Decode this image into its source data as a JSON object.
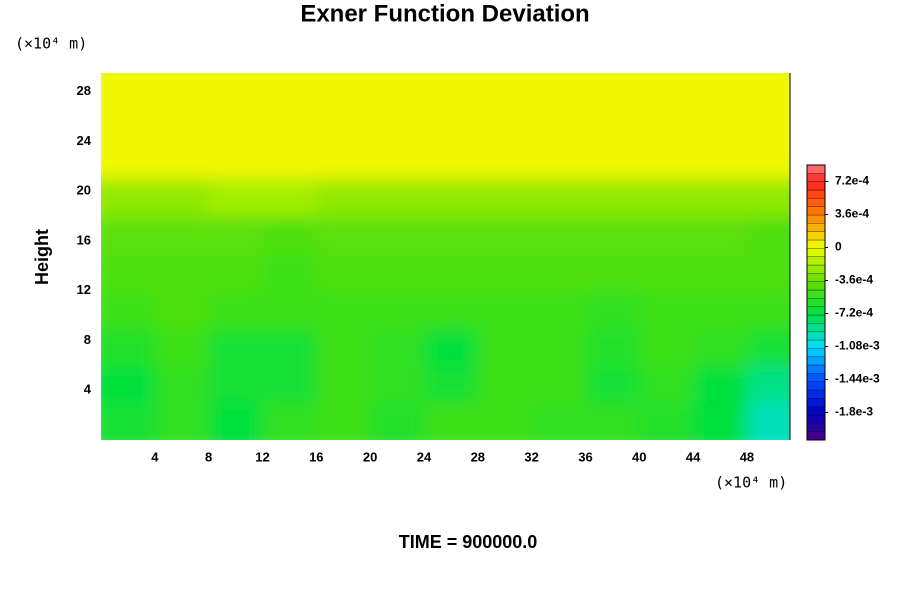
{
  "chart_data": {
    "type": "heatmap",
    "title": "Exner Function Deviation",
    "ylabel": "Height",
    "xunit": "(×10⁴ m)",
    "yunit": "(×10⁴ m)",
    "footer": "TIME = 900000.0",
    "xlim": [
      0,
      51.2
    ],
    "ylim": [
      0,
      29.5
    ],
    "xticks": [
      4,
      8,
      12,
      16,
      20,
      24,
      28,
      32,
      36,
      40,
      44,
      48
    ],
    "yticks": [
      4,
      8,
      12,
      16,
      20,
      24,
      28
    ],
    "x": [
      2,
      6,
      10,
      14,
      18,
      22,
      26,
      30,
      34,
      38,
      42,
      46,
      50
    ],
    "y": [
      1.5,
      4.5,
      7.5,
      10.5,
      13.5,
      16.5,
      19.5,
      22.5,
      25.5,
      28.5
    ],
    "z": [
      [
        -0.00065,
        -0.00055,
        -0.0007,
        -0.00055,
        -0.0005,
        -0.0006,
        -0.0005,
        -0.0005,
        -0.00055,
        -0.00055,
        -0.0006,
        -0.0007,
        -0.00095
      ],
      [
        -0.0007,
        -0.00055,
        -0.00065,
        -0.00065,
        -0.0005,
        -0.00055,
        -0.00065,
        -0.0005,
        -0.0005,
        -0.00065,
        -0.00055,
        -0.0007,
        -0.00085
      ],
      [
        -0.0006,
        -0.0005,
        -0.00065,
        -0.00065,
        -0.0005,
        -0.00055,
        -0.0007,
        -0.0005,
        -0.0005,
        -0.0006,
        -0.0005,
        -0.00055,
        -0.00065
      ],
      [
        -0.0005,
        -0.00045,
        -0.0005,
        -0.0005,
        -0.0005,
        -0.0005,
        -0.0005,
        -0.0005,
        -0.0005,
        -0.00055,
        -0.0005,
        -0.0005,
        -0.0005
      ],
      [
        -0.00045,
        -0.00045,
        -0.00045,
        -0.0005,
        -0.00045,
        -0.00045,
        -0.00045,
        -0.00045,
        -0.00045,
        -0.00045,
        -0.00045,
        -0.00045,
        -0.00045
      ],
      [
        -0.0004,
        -0.0004,
        -0.0004,
        -0.00045,
        -0.0004,
        -0.0004,
        -0.0004,
        -0.0004,
        -0.0004,
        -0.0004,
        -0.0004,
        -0.0004,
        -0.00045
      ],
      [
        -0.00025,
        -0.00025,
        -0.0002,
        -0.0002,
        -0.00025,
        -0.00025,
        -0.00025,
        -0.00025,
        -0.00025,
        -0.00025,
        -0.00025,
        -0.00025,
        -0.00025
      ],
      [
        2e-05,
        2e-05,
        2e-05,
        2e-05,
        2e-05,
        2e-05,
        2e-05,
        2e-05,
        2e-05,
        2e-05,
        2e-05,
        2e-05,
        2e-05
      ],
      [
        2e-05,
        2e-05,
        2e-05,
        2e-05,
        2e-05,
        2e-05,
        2e-05,
        2e-05,
        2e-05,
        2e-05,
        2e-05,
        2e-05,
        2e-05
      ],
      [
        2e-05,
        2e-05,
        2e-05,
        2e-05,
        2e-05,
        2e-05,
        2e-05,
        2e-05,
        2e-05,
        2e-05,
        2e-05,
        2e-05,
        2e-05
      ]
    ],
    "clim": [
      -0.0021,
      0.0009
    ],
    "cticks": [
      {
        "value": 0.00072,
        "label": "7.2e-4"
      },
      {
        "value": 0.00036,
        "label": "3.6e-4"
      },
      0,
      {
        "value": -0.00036,
        "label": "-3.6e-4"
      },
      {
        "value": -0.00072,
        "label": "-7.2e-4"
      },
      {
        "value": -0.00108,
        "label": "-1.08e-3"
      },
      {
        "value": -0.00144,
        "label": "-1.44e-3"
      },
      {
        "value": -0.0018,
        "label": "-1.8e-3"
      }
    ],
    "colorscale": [
      [
        -0.0021,
        "#4b0082"
      ],
      [
        -0.0018,
        "#0000c0"
      ],
      [
        -0.00144,
        "#0050ff"
      ],
      [
        -0.00108,
        "#00e0ff"
      ],
      [
        -0.00072,
        "#00e040"
      ],
      [
        -0.00036,
        "#66e000"
      ],
      [
        0,
        "#f0ff00"
      ],
      [
        0.00036,
        "#ff8000"
      ],
      [
        0.00072,
        "#ff2020"
      ],
      [
        0.0009,
        "#ff8080"
      ]
    ]
  }
}
